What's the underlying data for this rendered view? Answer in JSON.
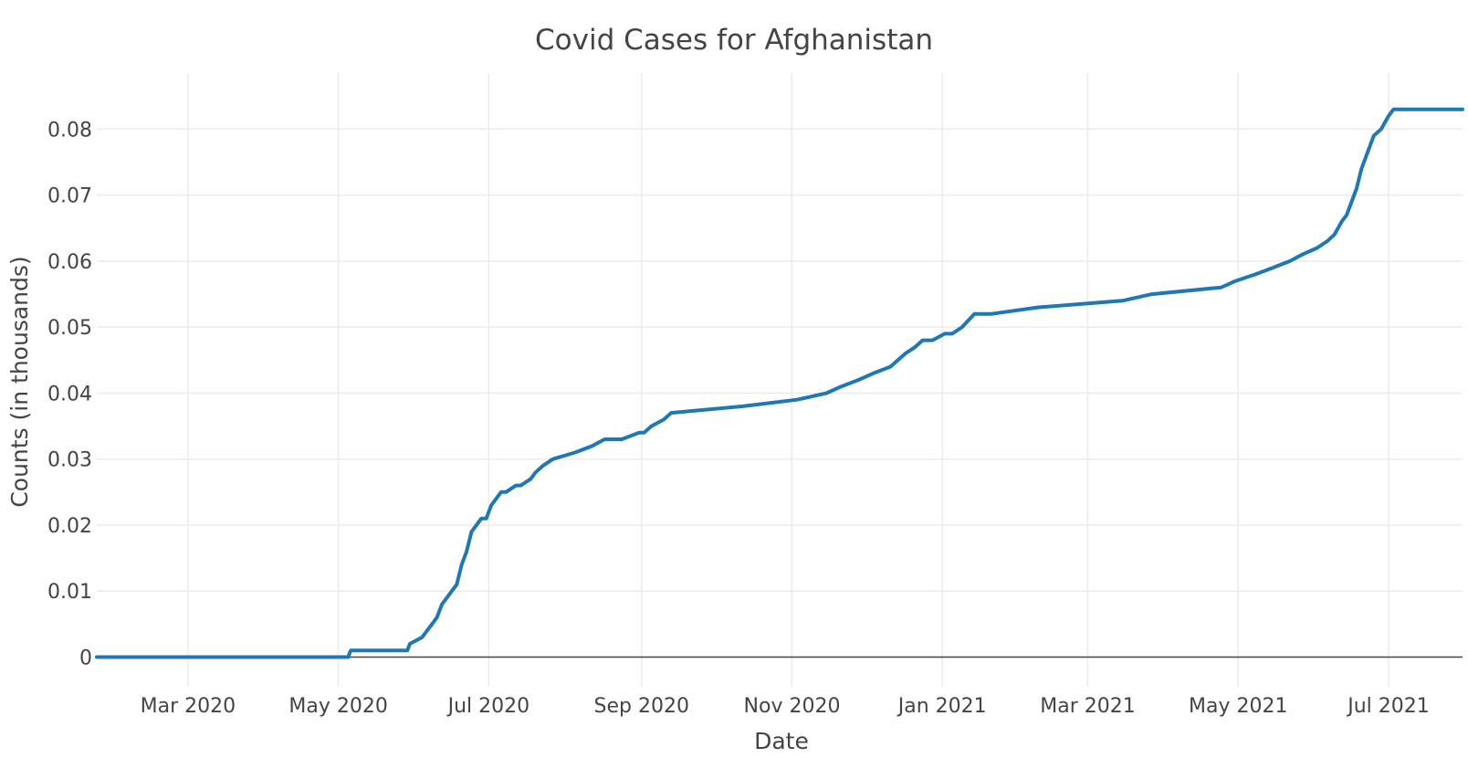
{
  "chart_data": {
    "type": "line",
    "title": "Covid Cases for Afghanistan",
    "xlabel": "Date",
    "ylabel": "Counts (in thousands)",
    "x_ticks": [
      {
        "date": "2020-03-01",
        "label": "Mar 2020"
      },
      {
        "date": "2020-05-01",
        "label": "May 2020"
      },
      {
        "date": "2020-07-01",
        "label": "Jul 2020"
      },
      {
        "date": "2020-09-01",
        "label": "Sep 2020"
      },
      {
        "date": "2020-11-01",
        "label": "Nov 2020"
      },
      {
        "date": "2021-01-01",
        "label": "Jan 2021"
      },
      {
        "date": "2021-03-01",
        "label": "Mar 2021"
      },
      {
        "date": "2021-05-01",
        "label": "May 2021"
      },
      {
        "date": "2021-07-01",
        "label": "Jul 2021"
      }
    ],
    "y_ticks": [
      {
        "value": 0,
        "label": "0"
      },
      {
        "value": 0.01,
        "label": "0.01"
      },
      {
        "value": 0.02,
        "label": "0.02"
      },
      {
        "value": 0.03,
        "label": "0.03"
      },
      {
        "value": 0.04,
        "label": "0.04"
      },
      {
        "value": 0.05,
        "label": "0.05"
      },
      {
        "value": 0.06,
        "label": "0.06"
      },
      {
        "value": 0.07,
        "label": "0.07"
      },
      {
        "value": 0.08,
        "label": "0.08"
      }
    ],
    "xlim": [
      "2020-01-24",
      "2021-07-31"
    ],
    "ylim": [
      -0.0045,
      0.0885
    ],
    "grid": true,
    "legend": "none",
    "color": "#1f77b4",
    "x": [
      "2020-01-24",
      "2020-05-05",
      "2020-05-06",
      "2020-05-29",
      "2020-05-30",
      "2020-06-04",
      "2020-06-06",
      "2020-06-08",
      "2020-06-10",
      "2020-06-12",
      "2020-06-14",
      "2020-06-16",
      "2020-06-18",
      "2020-06-20",
      "2020-06-22",
      "2020-06-24",
      "2020-06-26",
      "2020-06-28",
      "2020-06-30",
      "2020-07-02",
      "2020-07-04",
      "2020-07-06",
      "2020-07-08",
      "2020-07-12",
      "2020-07-14",
      "2020-07-18",
      "2020-07-20",
      "2020-07-23",
      "2020-07-27",
      "2020-08-05",
      "2020-08-12",
      "2020-08-17",
      "2020-08-24",
      "2020-08-31",
      "2020-09-02",
      "2020-09-05",
      "2020-09-10",
      "2020-09-13",
      "2020-10-12",
      "2020-11-03",
      "2020-11-15",
      "2020-11-21",
      "2020-11-28",
      "2020-12-04",
      "2020-12-11",
      "2020-12-14",
      "2020-12-17",
      "2020-12-21",
      "2020-12-24",
      "2020-12-28",
      "2021-01-02",
      "2021-01-05",
      "2021-01-09",
      "2021-01-14",
      "2021-01-21",
      "2021-02-09",
      "2021-03-15",
      "2021-03-27",
      "2021-04-24",
      "2021-04-30",
      "2021-05-08",
      "2021-05-15",
      "2021-05-22",
      "2021-05-27",
      "2021-06-02",
      "2021-06-06",
      "2021-06-09",
      "2021-06-12",
      "2021-06-14",
      "2021-06-16",
      "2021-06-18",
      "2021-06-20",
      "2021-06-22",
      "2021-06-25",
      "2021-06-28",
      "2021-07-01",
      "2021-07-03",
      "2021-07-05",
      "2021-07-07",
      "2021-07-31"
    ],
    "y": [
      0,
      0,
      0.001,
      0.001,
      0.002,
      0.003,
      0.004,
      0.005,
      0.006,
      0.008,
      0.009,
      0.01,
      0.011,
      0.014,
      0.016,
      0.019,
      0.02,
      0.021,
      0.021,
      0.023,
      0.024,
      0.025,
      0.025,
      0.026,
      0.026,
      0.027,
      0.028,
      0.029,
      0.03,
      0.031,
      0.032,
      0.033,
      0.033,
      0.034,
      0.034,
      0.035,
      0.036,
      0.037,
      0.038,
      0.039,
      0.04,
      0.041,
      0.042,
      0.043,
      0.044,
      0.045,
      0.046,
      0.047,
      0.048,
      0.048,
      0.049,
      0.049,
      0.05,
      0.052,
      0.052,
      0.053,
      0.054,
      0.055,
      0.056,
      0.057,
      0.058,
      0.059,
      0.06,
      0.061,
      0.062,
      0.063,
      0.064,
      0.066,
      0.067,
      0.069,
      0.071,
      0.074,
      0.076,
      0.079,
      0.08,
      0.082,
      0.083,
      0.083,
      0.083,
      0.083
    ]
  }
}
